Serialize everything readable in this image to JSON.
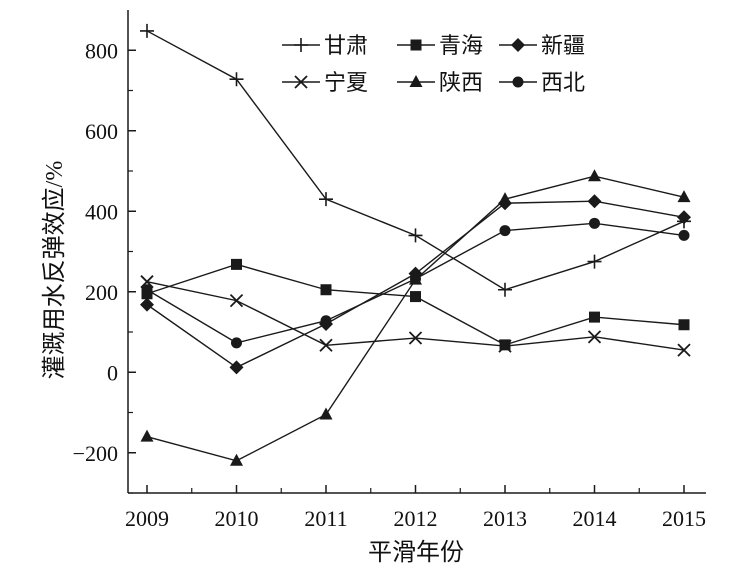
{
  "chart_data": {
    "type": "line",
    "x": [
      2009,
      2010,
      2011,
      2012,
      2013,
      2014,
      2015
    ],
    "xlabel": "平滑年份",
    "ylabel": "灌溉用水反弹效应/%",
    "ylim": [
      -300,
      900
    ],
    "yticks": [
      -200,
      0,
      200,
      400,
      600,
      800
    ],
    "ytick_labels": [
      "−200",
      "0",
      "200",
      "400",
      "600",
      "800"
    ],
    "legend_position": "top",
    "grid": false,
    "series": [
      {
        "name": "甘肃",
        "marker": "plus",
        "values": [
          848,
          728,
          430,
          340,
          205,
          275,
          375
        ]
      },
      {
        "name": "青海",
        "marker": "square",
        "values": [
          195,
          268,
          205,
          188,
          68,
          137,
          118
        ]
      },
      {
        "name": "新疆",
        "marker": "diamond",
        "values": [
          168,
          12,
          120,
          245,
          420,
          425,
          385
        ]
      },
      {
        "name": "宁夏",
        "marker": "cross",
        "values": [
          225,
          178,
          67,
          85,
          65,
          88,
          55
        ]
      },
      {
        "name": "陕西",
        "marker": "triangle",
        "values": [
          -160,
          -220,
          -105,
          230,
          430,
          487,
          435
        ]
      },
      {
        "name": "西北",
        "marker": "circle",
        "values": [
          205,
          73,
          128,
          232,
          352,
          370,
          340
        ]
      }
    ],
    "line_color": "#1a1a1a"
  }
}
